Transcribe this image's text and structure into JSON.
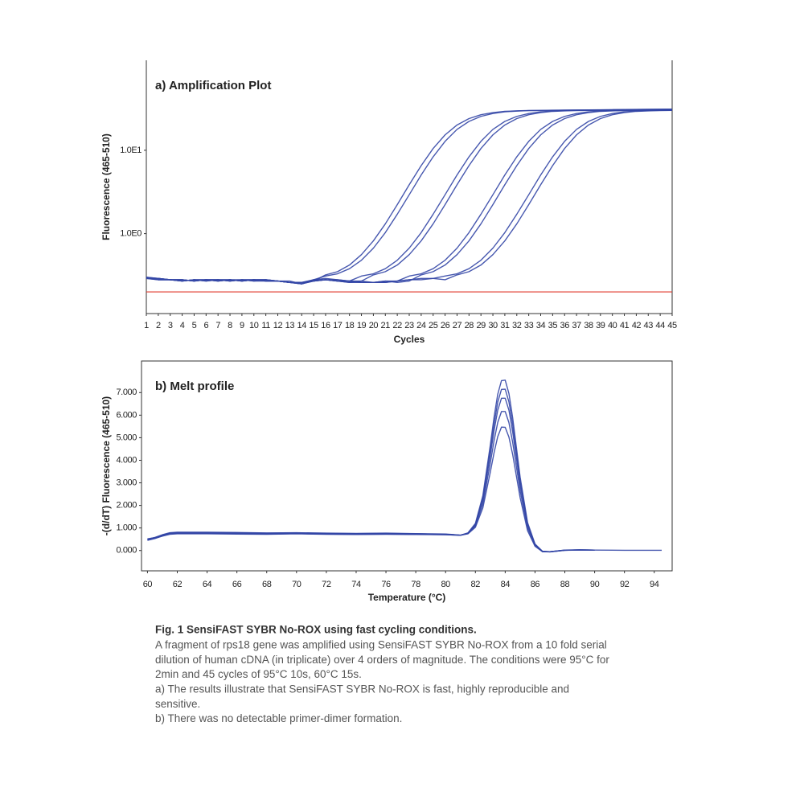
{
  "chart_data": [
    {
      "type": "line",
      "title": "a) Amplification Plot",
      "xlabel": "Cycles",
      "ylabel": "Fluorescence (465-510)",
      "ylog": true,
      "color": "#3346a6",
      "threshold": 0.2,
      "threshold_color": "#e03a2f",
      "x": [
        1,
        2,
        3,
        4,
        5,
        6,
        7,
        8,
        9,
        10,
        11,
        12,
        13,
        14,
        15,
        16,
        17,
        18,
        19,
        20,
        21,
        22,
        23,
        24,
        25,
        26,
        27,
        28,
        29,
        30,
        31,
        32,
        33,
        34,
        35,
        36,
        37,
        38,
        39,
        40,
        41,
        42,
        43,
        44,
        45
      ],
      "xlim": [
        1,
        45
      ],
      "xticks": [
        1,
        2,
        3,
        4,
        5,
        6,
        7,
        8,
        9,
        10,
        11,
        12,
        13,
        14,
        15,
        16,
        17,
        18,
        19,
        20,
        21,
        22,
        23,
        24,
        25,
        26,
        27,
        28,
        29,
        30,
        31,
        32,
        33,
        34,
        35,
        36,
        37,
        38,
        39,
        40,
        41,
        42,
        43,
        44,
        45
      ],
      "ylim": [
        0.11,
        120
      ],
      "yticks": [
        {
          "value": 1,
          "label": "1.0E0"
        },
        {
          "value": 10,
          "label": "1.0E1"
        }
      ],
      "series": [
        {
          "values": [
            0.3,
            0.29,
            0.28,
            0.28,
            0.27,
            0.28,
            0.28,
            0.27,
            0.28,
            0.28,
            0.27,
            0.27,
            0.26,
            0.25,
            0.27,
            0.32,
            0.35,
            0.42,
            0.56,
            0.82,
            1.31,
            2.23,
            3.86,
            6.54,
            10.5,
            15.3,
            20.1,
            24.0,
            26.7,
            28.3,
            29.3,
            29.7,
            30.0,
            30.1,
            30.2,
            30.3,
            30.4,
            30.5,
            30.6,
            30.7,
            30.8,
            30.9,
            31.0,
            31.1,
            31.2
          ]
        },
        {
          "values": [
            0.29,
            0.28,
            0.28,
            0.27,
            0.28,
            0.27,
            0.28,
            0.28,
            0.27,
            0.28,
            0.28,
            0.27,
            0.26,
            0.26,
            0.28,
            0.31,
            0.33,
            0.38,
            0.48,
            0.67,
            1.03,
            1.71,
            2.93,
            5.05,
            8.35,
            12.8,
            17.8,
            22.2,
            25.5,
            27.6,
            28.9,
            29.5,
            29.9,
            30.0,
            30.1,
            30.2,
            30.3,
            30.4,
            30.5,
            30.6,
            30.7,
            30.8,
            30.9,
            31.0,
            31.1
          ]
        },
        {
          "values": [
            0.3,
            0.28,
            0.28,
            0.28,
            0.27,
            0.28,
            0.27,
            0.28,
            0.28,
            0.27,
            0.28,
            0.27,
            0.27,
            0.25,
            0.28,
            0.28,
            0.27,
            0.27,
            0.31,
            0.33,
            0.38,
            0.48,
            0.67,
            1.03,
            1.71,
            2.93,
            5.05,
            8.35,
            12.8,
            17.8,
            22.2,
            25.5,
            27.6,
            28.9,
            29.5,
            29.9,
            30.0,
            30.1,
            30.2,
            30.3,
            30.4,
            30.5,
            30.6,
            30.7,
            30.8
          ]
        },
        {
          "values": [
            0.29,
            0.29,
            0.28,
            0.27,
            0.28,
            0.28,
            0.27,
            0.28,
            0.27,
            0.28,
            0.27,
            0.27,
            0.26,
            0.26,
            0.27,
            0.28,
            0.27,
            0.26,
            0.27,
            0.32,
            0.35,
            0.42,
            0.56,
            0.82,
            1.31,
            2.23,
            3.86,
            6.54,
            10.5,
            15.3,
            20.1,
            24.0,
            26.7,
            28.3,
            29.3,
            29.7,
            30.0,
            30.1,
            30.2,
            30.3,
            30.4,
            30.5,
            30.6,
            30.7,
            30.8
          ]
        },
        {
          "values": [
            0.3,
            0.29,
            0.28,
            0.28,
            0.27,
            0.28,
            0.28,
            0.27,
            0.28,
            0.28,
            0.27,
            0.27,
            0.26,
            0.25,
            0.28,
            0.29,
            0.28,
            0.27,
            0.27,
            0.26,
            0.26,
            0.27,
            0.31,
            0.33,
            0.38,
            0.48,
            0.67,
            1.03,
            1.71,
            2.93,
            5.05,
            8.35,
            12.8,
            17.8,
            22.2,
            25.5,
            27.6,
            28.9,
            29.5,
            29.9,
            30.0,
            30.1,
            30.2,
            30.3,
            30.4
          ]
        },
        {
          "values": [
            0.29,
            0.28,
            0.28,
            0.27,
            0.28,
            0.28,
            0.27,
            0.28,
            0.27,
            0.28,
            0.28,
            0.27,
            0.26,
            0.26,
            0.27,
            0.28,
            0.28,
            0.27,
            0.26,
            0.26,
            0.27,
            0.26,
            0.27,
            0.32,
            0.35,
            0.42,
            0.56,
            0.82,
            1.31,
            2.23,
            3.86,
            6.54,
            10.5,
            15.3,
            20.1,
            24.0,
            26.7,
            28.3,
            29.3,
            29.7,
            30.0,
            30.1,
            30.2,
            30.3,
            30.4
          ]
        },
        {
          "values": [
            0.3,
            0.28,
            0.28,
            0.28,
            0.27,
            0.28,
            0.28,
            0.27,
            0.28,
            0.27,
            0.27,
            0.27,
            0.26,
            0.25,
            0.27,
            0.28,
            0.27,
            0.26,
            0.26,
            0.26,
            0.27,
            0.27,
            0.28,
            0.28,
            0.29,
            0.31,
            0.33,
            0.38,
            0.48,
            0.67,
            1.03,
            1.71,
            2.93,
            5.05,
            8.35,
            12.8,
            17.8,
            22.2,
            25.5,
            27.6,
            28.9,
            29.5,
            29.9,
            30.0,
            30.1
          ]
        },
        {
          "values": [
            0.29,
            0.29,
            0.28,
            0.27,
            0.28,
            0.27,
            0.28,
            0.28,
            0.27,
            0.28,
            0.28,
            0.27,
            0.26,
            0.26,
            0.27,
            0.28,
            0.27,
            0.27,
            0.26,
            0.26,
            0.26,
            0.27,
            0.28,
            0.29,
            0.29,
            0.28,
            0.32,
            0.35,
            0.42,
            0.56,
            0.82,
            1.31,
            2.23,
            3.86,
            6.54,
            10.5,
            15.3,
            20.1,
            24.0,
            26.7,
            28.3,
            29.3,
            29.7,
            30.0,
            30.1
          ]
        }
      ]
    },
    {
      "type": "line",
      "title": "b) Melt profile",
      "xlabel": "Temperature (°C)",
      "ylabel": "-(d/dT) Fluorescence (465-510)",
      "color": "#3346a6",
      "x": [
        60,
        60.5,
        61,
        61.5,
        62,
        64,
        66,
        68,
        70,
        72,
        74,
        76,
        78,
        80,
        80.5,
        81,
        81.5,
        82,
        82.5,
        83,
        83.25,
        83.5,
        83.75,
        84,
        84.25,
        84.5,
        84.75,
        85,
        85.5,
        86,
        86.5,
        87,
        88,
        89,
        90,
        92,
        94.5
      ],
      "xlim": [
        59.6,
        95.2
      ],
      "xticks": [
        60,
        62,
        64,
        66,
        68,
        70,
        72,
        74,
        76,
        78,
        80,
        82,
        84,
        86,
        88,
        90,
        92,
        94
      ],
      "ylim": [
        -0.9,
        8.4
      ],
      "yticks": [
        {
          "value": 0,
          "label": "0.000"
        },
        {
          "value": 1,
          "label": "1.000"
        },
        {
          "value": 2,
          "label": "2.000"
        },
        {
          "value": 3,
          "label": "3.000"
        },
        {
          "value": 4,
          "label": "4.000"
        },
        {
          "value": 5,
          "label": "5.000"
        },
        {
          "value": 6,
          "label": "6.000"
        },
        {
          "value": 7,
          "label": "7.000"
        }
      ],
      "series": [
        {
          "values": [
            0.5,
            0.58,
            0.7,
            0.79,
            0.81,
            0.81,
            0.8,
            0.78,
            0.79,
            0.77,
            0.76,
            0.77,
            0.75,
            0.73,
            0.71,
            0.68,
            0.78,
            1.2,
            2.43,
            4.67,
            5.9,
            6.93,
            7.53,
            7.55,
            6.96,
            5.89,
            4.58,
            3.26,
            1.24,
            0.29,
            -0.03,
            -0.06,
            0.01,
            0.03,
            0.02,
            null,
            null
          ]
        },
        {
          "values": [
            0.47,
            0.55,
            0.67,
            0.77,
            0.8,
            0.79,
            0.79,
            0.76,
            0.78,
            0.76,
            0.75,
            0.76,
            0.74,
            0.72,
            0.7,
            0.68,
            0.77,
            1.17,
            2.33,
            4.44,
            5.6,
            6.58,
            7.14,
            7.15,
            6.59,
            5.58,
            4.34,
            3.09,
            1.17,
            0.27,
            -0.04,
            -0.05,
            0.02,
            0.03,
            0.02,
            null,
            null
          ]
        },
        {
          "values": [
            0.52,
            0.57,
            0.69,
            0.76,
            0.78,
            0.78,
            0.77,
            0.75,
            0.77,
            0.75,
            0.74,
            0.75,
            0.74,
            0.72,
            0.7,
            0.68,
            0.76,
            1.13,
            2.23,
            4.21,
            5.31,
            6.22,
            6.75,
            6.75,
            6.22,
            5.27,
            4.1,
            2.91,
            1.11,
            0.26,
            -0.04,
            -0.05,
            0.01,
            0.02,
            0.02,
            0.01,
            0.01
          ]
        },
        {
          "values": [
            0.45,
            0.53,
            0.65,
            0.74,
            0.76,
            0.76,
            0.75,
            0.73,
            0.75,
            0.73,
            0.72,
            0.73,
            0.72,
            0.7,
            0.69,
            0.68,
            0.75,
            1.08,
            2.07,
            3.87,
            4.86,
            5.68,
            6.16,
            6.16,
            5.67,
            4.8,
            3.73,
            2.65,
            1.0,
            0.23,
            -0.05,
            -0.05,
            0.02,
            0.03,
            0.02,
            null,
            null
          ]
        },
        {
          "values": [
            0.49,
            0.54,
            0.64,
            0.72,
            0.74,
            0.74,
            0.73,
            0.72,
            0.74,
            0.72,
            0.71,
            0.72,
            0.71,
            0.7,
            0.69,
            0.68,
            0.74,
            1.03,
            1.89,
            3.47,
            4.33,
            5.05,
            5.47,
            5.46,
            5.03,
            4.26,
            3.31,
            2.35,
            0.88,
            0.19,
            -0.05,
            -0.06,
            0.01,
            0.03,
            0.02,
            null,
            null
          ]
        }
      ]
    }
  ],
  "caption": {
    "title": "Fig. 1 SensiFAST SYBR No-ROX using fast cycling conditions.",
    "lines": [
      "A fragment of rps18 gene was amplified using SensiFAST SYBR No-ROX from a 10 fold serial",
      "dilution of human cDNA (in triplicate) over 4 orders of magnitude. The conditions were 95°C for",
      "2min and 45 cycles of 95°C 10s, 60°C 15s.",
      "a) The results illustrate that SensiFAST SYBR No-ROX is fast, highly reproducible and",
      "sensitive.",
      "b) There was no detectable primer-dimer formation."
    ]
  }
}
